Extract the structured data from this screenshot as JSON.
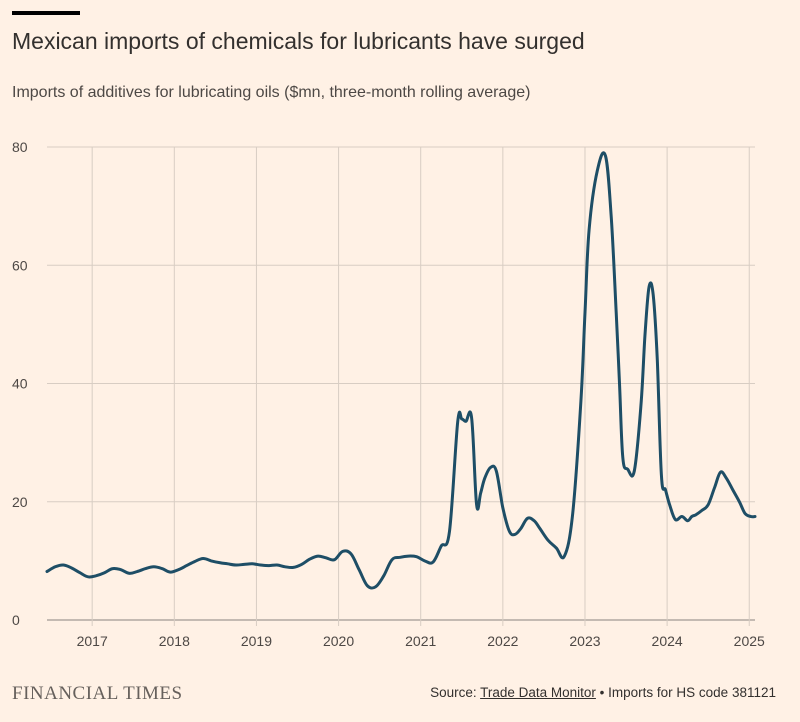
{
  "header": {
    "title": "Mexican imports of chemicals for lubricants have surged",
    "subtitle": "Imports of additives for lubricating oils ($mn, three-month rolling average)"
  },
  "footer": {
    "logo": "FINANCIAL TIMES",
    "source_prefix": "Source: ",
    "source_link": "Trade Data Monitor",
    "source_suffix": " • Imports for HS code 381121"
  },
  "colors": {
    "background": "#fff1e5",
    "line": "#1e4e66",
    "grid": "#d8cdc3"
  },
  "chart_data": {
    "type": "line",
    "title": "Mexican imports of chemicals for lubricants have surged",
    "xlabel": "",
    "ylabel": "",
    "ylim": [
      0,
      80
    ],
    "yticks": [
      0,
      20,
      40,
      60,
      80
    ],
    "xlim": [
      2016.45,
      2025.07
    ],
    "xticks": [
      2017,
      2018,
      2019,
      2020,
      2021,
      2022,
      2023,
      2024,
      2025
    ],
    "grid": true,
    "x": [
      2016.45,
      2016.55,
      2016.65,
      2016.75,
      2016.85,
      2016.95,
      2017.05,
      2017.15,
      2017.25,
      2017.35,
      2017.45,
      2017.55,
      2017.65,
      2017.75,
      2017.85,
      2017.95,
      2018.05,
      2018.15,
      2018.25,
      2018.35,
      2018.45,
      2018.55,
      2018.65,
      2018.75,
      2018.85,
      2018.95,
      2019.05,
      2019.15,
      2019.25,
      2019.35,
      2019.45,
      2019.55,
      2019.65,
      2019.75,
      2019.85,
      2019.95,
      2020.05,
      2020.15,
      2020.25,
      2020.35,
      2020.45,
      2020.55,
      2020.65,
      2020.75,
      2020.85,
      2020.95,
      2021.05,
      2021.15,
      2021.25,
      2021.35,
      2021.45,
      2021.5,
      2021.55,
      2021.62,
      2021.68,
      2021.73,
      2021.78,
      2021.85,
      2021.92,
      2022.0,
      2022.08,
      2022.15,
      2022.22,
      2022.3,
      2022.38,
      2022.45,
      2022.55,
      2022.65,
      2022.75,
      2022.85,
      2022.95,
      2023.0,
      2023.05,
      2023.15,
      2023.25,
      2023.32,
      2023.38,
      2023.42,
      2023.46,
      2023.52,
      2023.6,
      2023.68,
      2023.73,
      2023.78,
      2023.83,
      2023.88,
      2023.93,
      2023.98,
      2024.03,
      2024.1,
      2024.18,
      2024.25,
      2024.3,
      2024.35,
      2024.42,
      2024.5,
      2024.58,
      2024.65,
      2024.72,
      2024.8,
      2024.88,
      2024.95,
      2025.02,
      2025.07
    ],
    "series": [
      {
        "values": [
          8.2,
          9.0,
          9.3,
          8.8,
          8.0,
          7.3,
          7.5,
          8.0,
          8.7,
          8.5,
          7.9,
          8.2,
          8.7,
          9.0,
          8.7,
          8.1,
          8.5,
          9.2,
          9.9,
          10.4,
          10.0,
          9.7,
          9.5,
          9.3,
          9.4,
          9.5,
          9.3,
          9.2,
          9.3,
          9.0,
          8.9,
          9.4,
          10.3,
          10.8,
          10.5,
          10.2,
          11.6,
          11.2,
          8.5,
          5.8,
          5.6,
          7.5,
          10.2,
          10.6,
          10.8,
          10.7,
          10.0,
          9.8,
          12.5,
          15.0,
          33.5,
          34.0,
          33.6,
          34.2,
          19.5,
          21.5,
          24.0,
          25.8,
          25.2,
          19.0,
          15.0,
          14.5,
          15.5,
          17.2,
          16.8,
          15.5,
          13.5,
          12.2,
          10.8,
          18.0,
          37.0,
          52.0,
          66.0,
          76.0,
          78.5,
          68.0,
          52.0,
          40.0,
          27.5,
          25.5,
          25.2,
          36.0,
          48.0,
          56.3,
          55.0,
          44.0,
          24.5,
          22.0,
          19.5,
          17.0,
          17.5,
          16.8,
          17.5,
          17.8,
          18.5,
          19.5,
          22.5,
          25.0,
          24.0,
          22.0,
          20.0,
          18.0,
          17.5,
          17.5
        ]
      }
    ]
  }
}
